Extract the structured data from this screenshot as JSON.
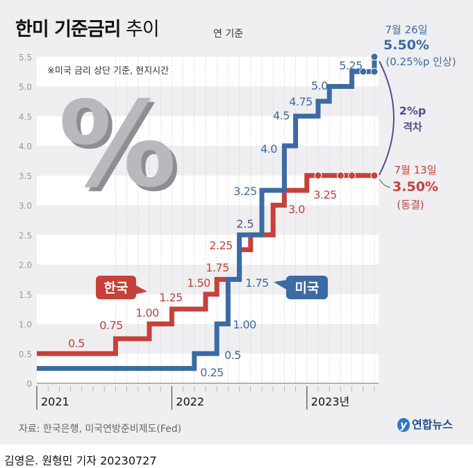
{
  "header": {
    "title_bold": "한미 기준금리",
    "title_light": " 추이",
    "unit": "연 기준",
    "note": "※미국 금리 상단 기준, 현지시간"
  },
  "decoration": {
    "percent_graphic": "%"
  },
  "colors": {
    "korea": "#c8403a",
    "us": "#3c6aa3",
    "gap": "#5a4a8e",
    "background": "#efeff1"
  },
  "chart_data": {
    "type": "line",
    "step": true,
    "title": "한미 기준금리 추이",
    "ylim": [
      0,
      5.5
    ],
    "yticks": [
      "0",
      "0.5",
      "1.0",
      "1.5",
      "2.0",
      "2.5",
      "3.0",
      "3.5",
      "4.0",
      "4.5",
      "5.0",
      "5.5"
    ],
    "xrange": [
      "2021-01",
      "2023-07"
    ],
    "xticks": [
      "2021",
      "2022",
      "2023년"
    ],
    "series": [
      {
        "name": "한국",
        "steps": [
          {
            "x": "2021-01",
            "y": 0.5,
            "label": "0.5"
          },
          {
            "x": "2021-08",
            "y": 0.75,
            "label": "0.75"
          },
          {
            "x": "2021-11",
            "y": 1.0,
            "label": "1.00"
          },
          {
            "x": "2022-01",
            "y": 1.25,
            "label": "1.25"
          },
          {
            "x": "2022-04",
            "y": 1.5,
            "label": "1.50"
          },
          {
            "x": "2022-05",
            "y": 1.75,
            "label": "1.75"
          },
          {
            "x": "2022-07",
            "y": 2.25,
            "label": "2.25"
          },
          {
            "x": "2022-08",
            "y": 2.5,
            "label": ""
          },
          {
            "x": "2022-10",
            "y": 3.0,
            "label": "3.0"
          },
          {
            "x": "2022-11",
            "y": 3.25,
            "label": "3.25"
          },
          {
            "x": "2023-01",
            "y": 3.5,
            "label": ""
          }
        ],
        "markers": [
          "2023-02",
          "2023-04",
          "2023-05",
          "2023-07"
        ]
      },
      {
        "name": "미국",
        "steps": [
          {
            "x": "2021-01",
            "y": 0.25,
            "label": "0.25"
          },
          {
            "x": "2022-03",
            "y": 0.5,
            "label": "0.5"
          },
          {
            "x": "2022-05",
            "y": 1.0,
            "label": "1.00"
          },
          {
            "x": "2022-06",
            "y": 1.75,
            "label": "1.75"
          },
          {
            "x": "2022-07",
            "y": 2.5,
            "label": ""
          },
          {
            "x": "2022-09",
            "y": 3.25,
            "label": "3.25"
          },
          {
            "x": "2022-11",
            "y": 4.0,
            "label": "4.0"
          },
          {
            "x": "2022-12",
            "y": 4.5,
            "label": "4.5"
          },
          {
            "x": "2023-02",
            "y": 4.75,
            "label": "4.75"
          },
          {
            "x": "2023-03",
            "y": 5.0,
            "label": "5.0"
          },
          {
            "x": "2023-05",
            "y": 5.25,
            "label": "5.25"
          },
          {
            "x": "2023-07",
            "y": 5.5,
            "label": ""
          }
        ],
        "markers": [
          "2023-06",
          "2023-07"
        ]
      }
    ],
    "shared_label": "2.5",
    "annotations": {
      "us_date": "7월 26일",
      "us_rate": "5.50%",
      "us_change": "(0.25%p 인상)",
      "gap_value": "2%p",
      "gap_label": "격차",
      "kr_date": "7월 13일",
      "kr_rate": "3.50%",
      "kr_change": "(동결)"
    }
  },
  "footer": {
    "source": "자료: 한국은행, 미국연방준비제도(Fed)",
    "logo": "연합뉴스",
    "credit": "김영은. 원형민 기자  20230727"
  }
}
